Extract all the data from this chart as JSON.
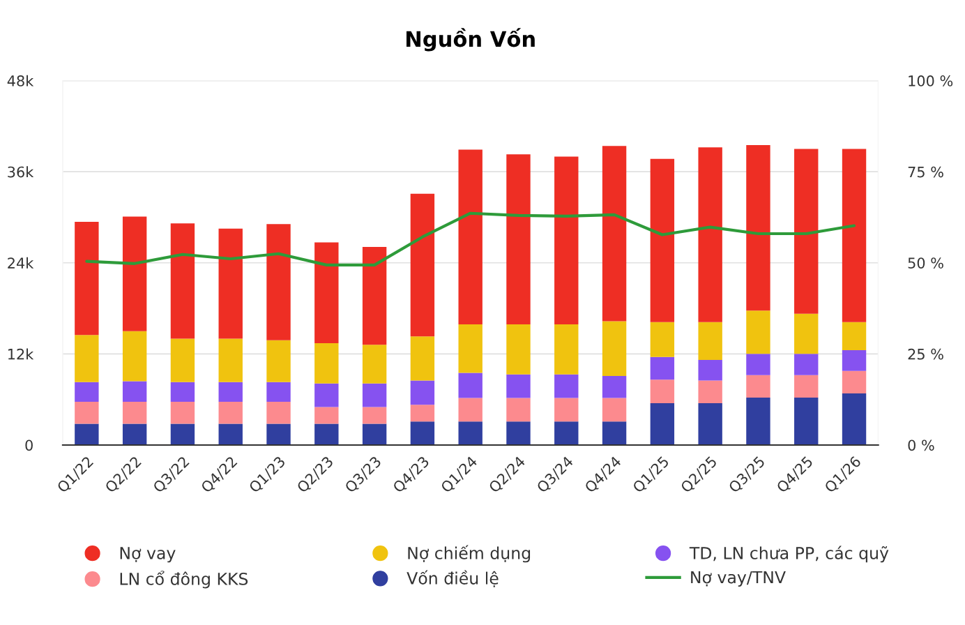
{
  "chart_data": {
    "type": "bar",
    "title": "Nguồn Vốn",
    "stacked": true,
    "categories": [
      "Q1/22",
      "Q2/22",
      "Q3/22",
      "Q4/22",
      "Q1/23",
      "Q2/23",
      "Q3/23",
      "Q4/23",
      "Q1/24",
      "Q2/24",
      "Q3/24",
      "Q4/24",
      "Q1/25",
      "Q2/25",
      "Q3/25",
      "Q4/25",
      "Q1/26"
    ],
    "series": [
      {
        "name": "Vốn điều lệ",
        "color": "#303f9f",
        "values": [
          2.8,
          2.8,
          2.8,
          2.8,
          2.8,
          2.8,
          2.8,
          3.1,
          3.1,
          3.1,
          3.1,
          3.1,
          5.5,
          5.5,
          6.25,
          6.25,
          6.8
        ]
      },
      {
        "name": "LN cổ đông KKS",
        "color": "#fc8a8e",
        "values": [
          2.9,
          2.9,
          2.9,
          2.9,
          2.9,
          2.2,
          2.2,
          2.2,
          3.1,
          3.1,
          3.1,
          3.1,
          3.1,
          3.0,
          2.95,
          2.95,
          2.95
        ]
      },
      {
        "name": "TD, LN chưa PP, các quỹ",
        "color": "#8652f0",
        "values": [
          2.6,
          2.7,
          2.6,
          2.6,
          2.6,
          3.1,
          3.1,
          3.2,
          3.3,
          3.1,
          3.1,
          2.9,
          3.0,
          2.7,
          2.8,
          2.8,
          2.75
        ]
      },
      {
        "name": "Nợ chiếm dụng",
        "color": "#f0c30f",
        "values": [
          6.2,
          6.6,
          5.7,
          5.7,
          5.5,
          5.3,
          5.1,
          5.8,
          6.4,
          6.6,
          6.6,
          7.2,
          4.6,
          5.0,
          5.7,
          5.3,
          3.7
        ]
      },
      {
        "name": "Nợ vay",
        "color": "#ee2e24",
        "values": [
          14.9,
          15.1,
          15.2,
          14.5,
          15.3,
          13.3,
          12.9,
          18.8,
          23.0,
          22.4,
          22.1,
          23.1,
          21.5,
          23.0,
          21.8,
          21.7,
          22.8
        ]
      },
      {
        "name": "Nợ vay/TNV",
        "type": "line",
        "axis": "y2",
        "color": "#2e9b3a",
        "values": [
          50.4,
          49.8,
          52.3,
          51.1,
          52.5,
          49.4,
          49.4,
          57.1,
          63.6,
          63.0,
          62.8,
          63.2,
          57.7,
          59.8,
          58.0,
          58.0,
          60.2
        ]
      }
    ],
    "ylim": [
      0,
      48
    ],
    "yticks": [
      {
        "value": 0,
        "label": "0"
      },
      {
        "value": 12,
        "label": "12k"
      },
      {
        "value": 24,
        "label": "24k"
      },
      {
        "value": 36,
        "label": "36k"
      },
      {
        "value": 48,
        "label": "48k"
      }
    ],
    "y2lim": [
      0,
      100
    ],
    "y2ticks": [
      {
        "value": 0,
        "label": "0 %"
      },
      {
        "value": 25,
        "label": "25 %"
      },
      {
        "value": 50,
        "label": "50 %"
      },
      {
        "value": 75,
        "label": "75 %"
      },
      {
        "value": 100,
        "label": "100 %"
      }
    ],
    "grid": "y",
    "legend": "bottom",
    "marker": "none",
    "line_style": "solid"
  }
}
